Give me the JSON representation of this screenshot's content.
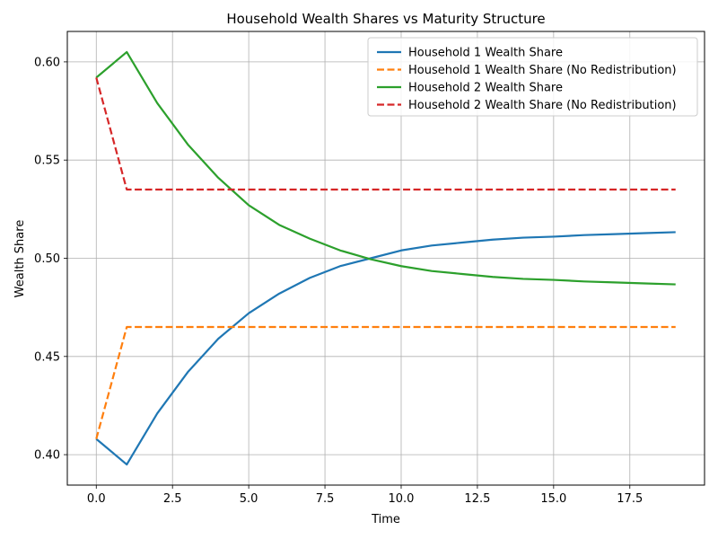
{
  "chart_data": {
    "type": "line",
    "title": "Household Wealth Shares vs Maturity Structure",
    "xlabel": "Time",
    "ylabel": "Wealth Share",
    "xlim": [
      -0.95,
      19.95
    ],
    "ylim": [
      0.3845,
      0.6155
    ],
    "xticks": [
      0.0,
      2.5,
      5.0,
      7.5,
      10.0,
      12.5,
      15.0,
      17.5
    ],
    "xtick_labels": [
      "0.0",
      "2.5",
      "5.0",
      "7.5",
      "10.0",
      "12.5",
      "15.0",
      "17.5"
    ],
    "yticks": [
      0.4,
      0.45,
      0.5,
      0.55,
      0.6
    ],
    "ytick_labels": [
      "0.40",
      "0.45",
      "0.50",
      "0.55",
      "0.60"
    ],
    "grid": true,
    "legend_position": "top-right",
    "x": [
      0,
      1,
      2,
      3,
      4,
      5,
      6,
      7,
      8,
      9,
      10,
      11,
      12,
      13,
      14,
      15,
      16,
      17,
      18,
      19
    ],
    "series": [
      {
        "name": "Household 1 Wealth Share",
        "color": "#1f77b4",
        "style": "solid",
        "values": [
          0.408,
          0.395,
          0.421,
          0.442,
          0.459,
          0.472,
          0.482,
          0.49,
          0.496,
          0.5,
          0.504,
          0.5065,
          0.508,
          0.5095,
          0.5105,
          0.511,
          0.5118,
          0.5123,
          0.5128,
          0.5133
        ]
      },
      {
        "name": "Household 1 Wealth Share (No Redistribution)",
        "color": "#ff7f0e",
        "style": "dashed",
        "values": [
          0.408,
          0.465,
          0.465,
          0.465,
          0.465,
          0.465,
          0.465,
          0.465,
          0.465,
          0.465,
          0.465,
          0.465,
          0.465,
          0.465,
          0.465,
          0.465,
          0.465,
          0.465,
          0.465,
          0.465
        ]
      },
      {
        "name": "Household 2 Wealth Share",
        "color": "#2ca02c",
        "style": "solid",
        "values": [
          0.592,
          0.605,
          0.579,
          0.558,
          0.541,
          0.527,
          0.517,
          0.51,
          0.504,
          0.4995,
          0.496,
          0.4935,
          0.492,
          0.4905,
          0.4895,
          0.489,
          0.4882,
          0.4877,
          0.4872,
          0.4867
        ]
      },
      {
        "name": "Household 2 Wealth Share (No Redistribution)",
        "color": "#d62728",
        "style": "dashed",
        "values": [
          0.592,
          0.535,
          0.535,
          0.535,
          0.535,
          0.535,
          0.535,
          0.535,
          0.535,
          0.535,
          0.535,
          0.535,
          0.535,
          0.535,
          0.535,
          0.535,
          0.535,
          0.535,
          0.535,
          0.535
        ]
      }
    ]
  }
}
